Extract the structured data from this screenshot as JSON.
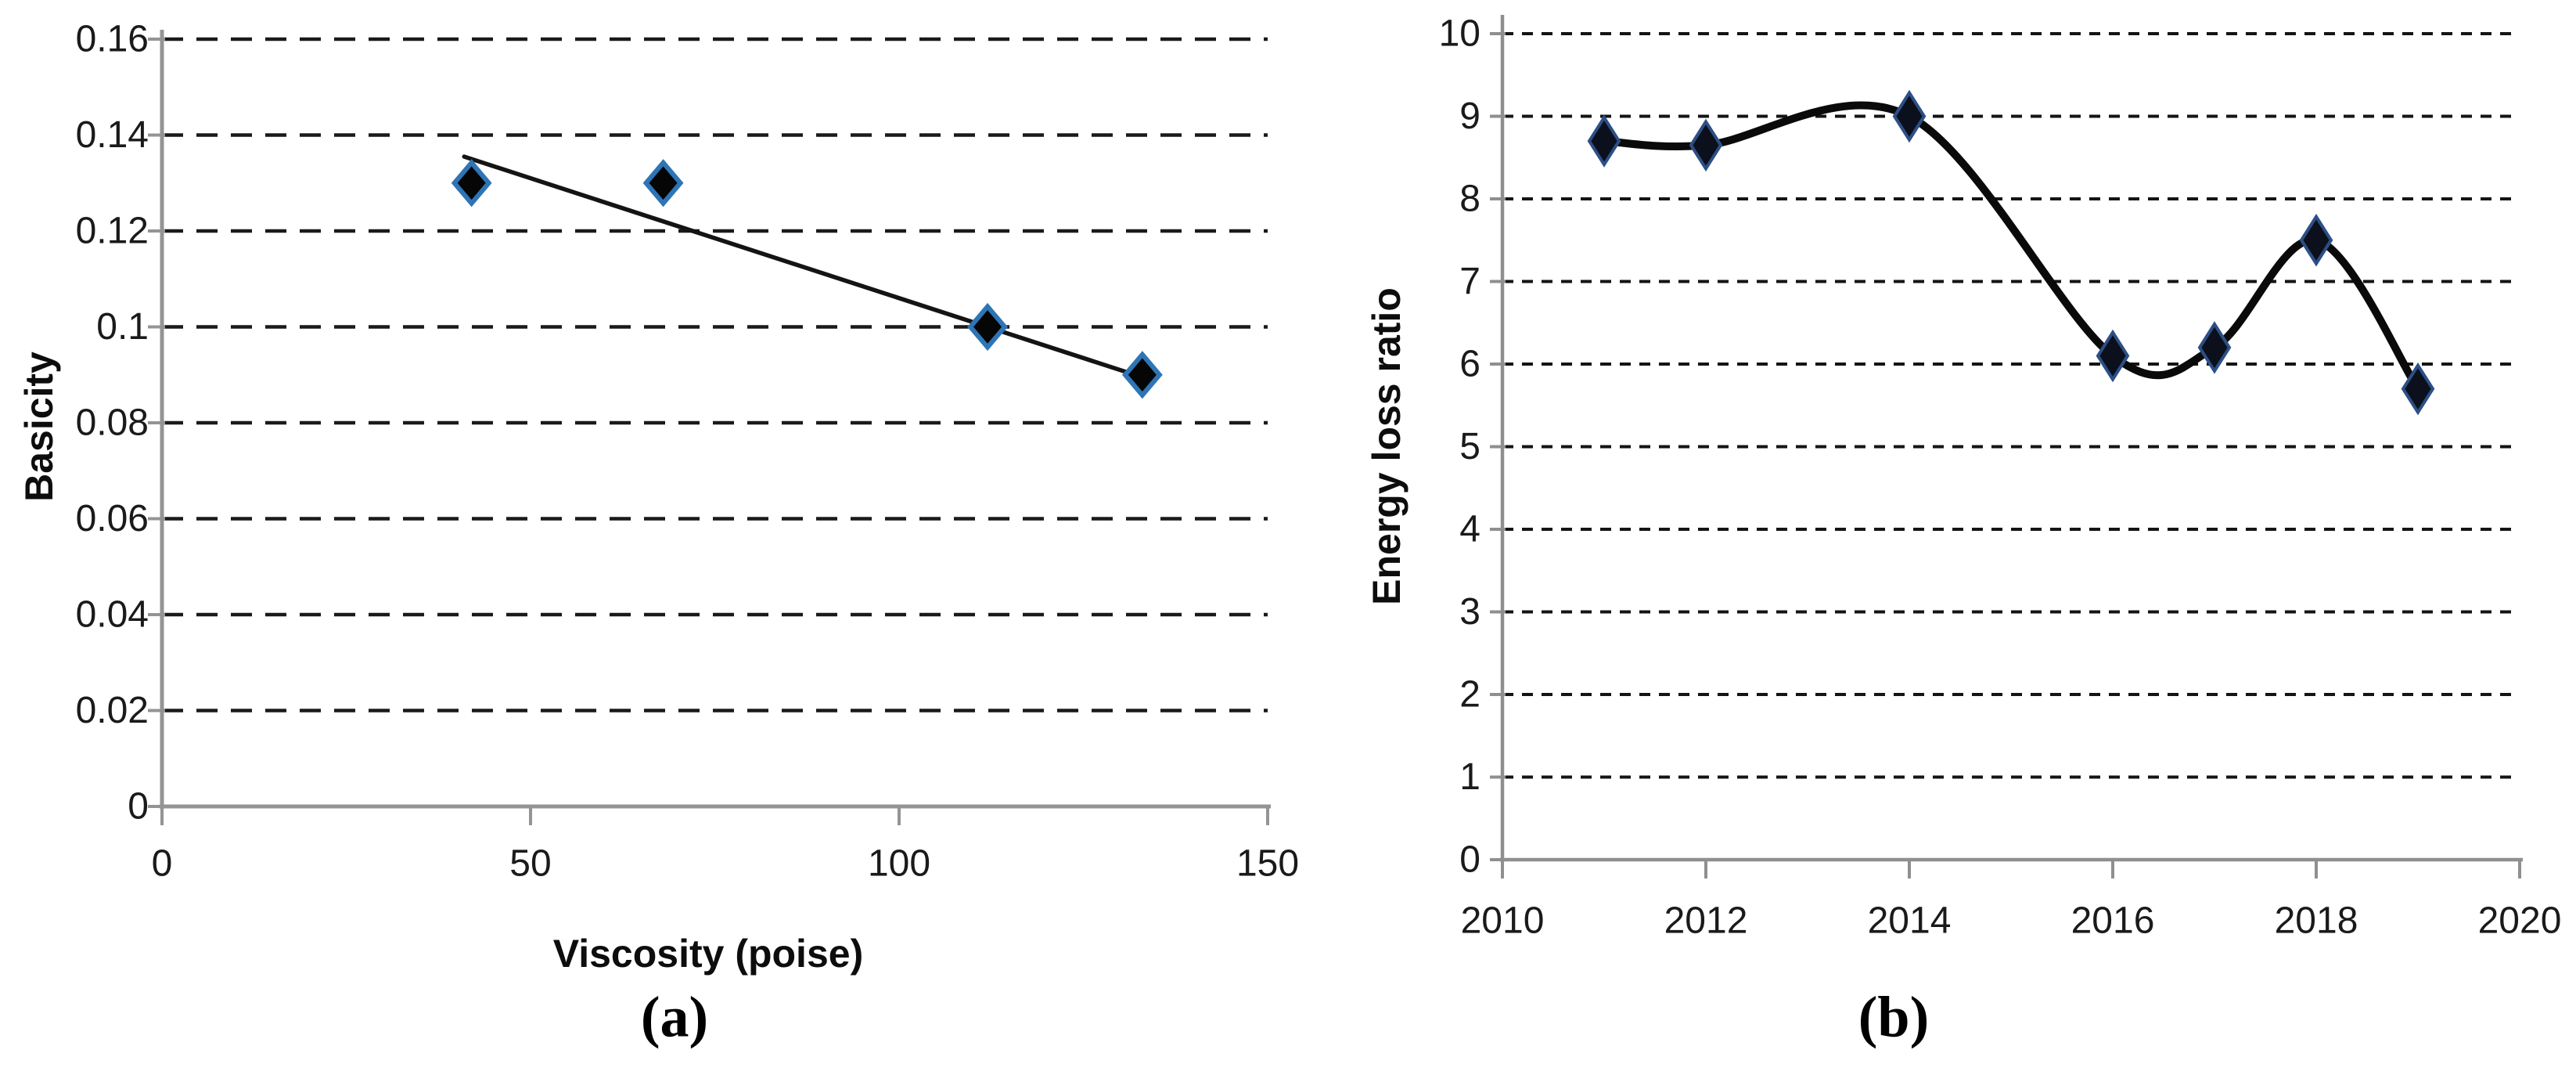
{
  "page": {
    "background": "#ffffff",
    "figure_type": "two-panel scientific figure"
  },
  "chart_data": [
    {
      "id": "a",
      "type": "scatter",
      "caption": "(a)",
      "xlabel": "Viscosity (poise)",
      "ylabel": "Basicity",
      "xlim": [
        0,
        150
      ],
      "ylim": [
        0,
        0.16
      ],
      "grid": "horizontal-dashed",
      "legend": "none",
      "x_ticks": [
        {
          "v": 0,
          "label": "0"
        },
        {
          "v": 50,
          "label": "50"
        },
        {
          "v": 100,
          "label": "100"
        },
        {
          "v": 150,
          "label": "150"
        }
      ],
      "y_ticks": [
        {
          "v": 0,
          "label": "0"
        },
        {
          "v": 0.02,
          "label": "0.02"
        },
        {
          "v": 0.04,
          "label": "0.04"
        },
        {
          "v": 0.06,
          "label": "0.06"
        },
        {
          "v": 0.08,
          "label": "0.08"
        },
        {
          "v": 0.1,
          "label": "0.1"
        },
        {
          "v": 0.12,
          "label": "0.12"
        },
        {
          "v": 0.14,
          "label": "0.14"
        },
        {
          "v": 0.16,
          "label": "0.16"
        }
      ],
      "points": [
        {
          "x": 42,
          "y": 0.13
        },
        {
          "x": 68,
          "y": 0.13
        },
        {
          "x": 112,
          "y": 0.1
        },
        {
          "x": 133,
          "y": 0.09
        }
      ],
      "trendline": {
        "x1": 41,
        "y1": 0.1355,
        "x2": 131,
        "y2": 0.0905
      },
      "colors": {
        "marker_fill": "#060606",
        "marker_stroke": "#2e75b6",
        "trendline": "#141414",
        "grid": "#1a1a1a",
        "axis": "#949494",
        "text": "#1a1a1a"
      }
    },
    {
      "id": "b",
      "type": "line",
      "smooth": true,
      "caption": "(b)",
      "xlabel": "",
      "ylabel": "Energy loss ratio",
      "xlim": [
        2010,
        2020
      ],
      "ylim": [
        0,
        10
      ],
      "grid": "horizontal-dashed",
      "legend": "none",
      "x_ticks": [
        {
          "v": 2010,
          "label": "2010"
        },
        {
          "v": 2012,
          "label": "2012"
        },
        {
          "v": 2014,
          "label": "2014"
        },
        {
          "v": 2016,
          "label": "2016"
        },
        {
          "v": 2018,
          "label": "2018"
        },
        {
          "v": 2020,
          "label": "2020"
        }
      ],
      "y_ticks": [
        {
          "v": 0,
          "label": "0"
        },
        {
          "v": 1,
          "label": "1"
        },
        {
          "v": 2,
          "label": "2"
        },
        {
          "v": 3,
          "label": "3"
        },
        {
          "v": 4,
          "label": "4"
        },
        {
          "v": 5,
          "label": "5"
        },
        {
          "v": 6,
          "label": "6"
        },
        {
          "v": 7,
          "label": "7"
        },
        {
          "v": 8,
          "label": "8"
        },
        {
          "v": 9,
          "label": "9"
        },
        {
          "v": 10,
          "label": "10"
        }
      ],
      "series": [
        {
          "name": "Energy loss ratio",
          "x": [
            2011,
            2012,
            2014,
            2016,
            2017,
            2018,
            2019
          ],
          "y": [
            8.7,
            8.65,
            9.0,
            6.1,
            6.2,
            7.5,
            5.7
          ]
        }
      ],
      "colors": {
        "line": "#0a0a0a",
        "marker_fill": "#0b101c",
        "marker_stroke": "#2d4f86",
        "grid": "#141414",
        "axis": "#8f8f8f",
        "text": "#1a1a1a"
      }
    }
  ]
}
